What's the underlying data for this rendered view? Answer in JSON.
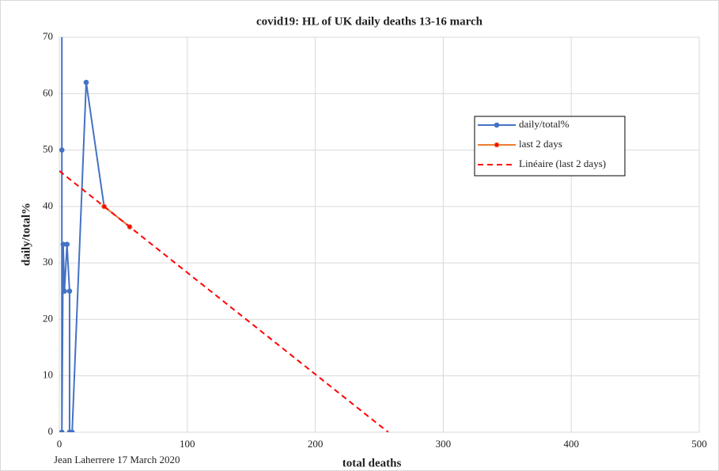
{
  "chart_data": {
    "type": "line",
    "title": "covid19: HL of UK daily deaths 13-16 march",
    "xlabel": "total deaths",
    "ylabel": "daily/total%",
    "annotation": "Jean Laherrere 17 March 2020",
    "xlim": [
      0,
      500
    ],
    "xticks": [
      0,
      100,
      200,
      300,
      400,
      500
    ],
    "ylim": [
      0,
      70
    ],
    "yticks": [
      0,
      10,
      20,
      30,
      40,
      50,
      60,
      70
    ],
    "grid": true,
    "legend": "upper right",
    "series": [
      {
        "name": "daily/total%",
        "color": "#4472c4",
        "marker": true,
        "dash": false,
        "x": [
          2,
          2,
          2,
          3,
          4,
          6,
          8,
          8,
          10,
          21,
          35,
          55
        ],
        "values": [
          100,
          50,
          0,
          33.3,
          25,
          33.3,
          25,
          0,
          0,
          62,
          40,
          36.4
        ]
      },
      {
        "name": "last 2 days",
        "color": "#ed7d31",
        "marker": true,
        "dash": false,
        "x": [
          35,
          55
        ],
        "values": [
          40,
          36.4
        ]
      },
      {
        "name": "Linéaire (last 2 days)",
        "color": "#ff0000",
        "marker": false,
        "dash": true,
        "x": [
          0,
          257
        ],
        "values": [
          46.3,
          0
        ]
      }
    ]
  }
}
